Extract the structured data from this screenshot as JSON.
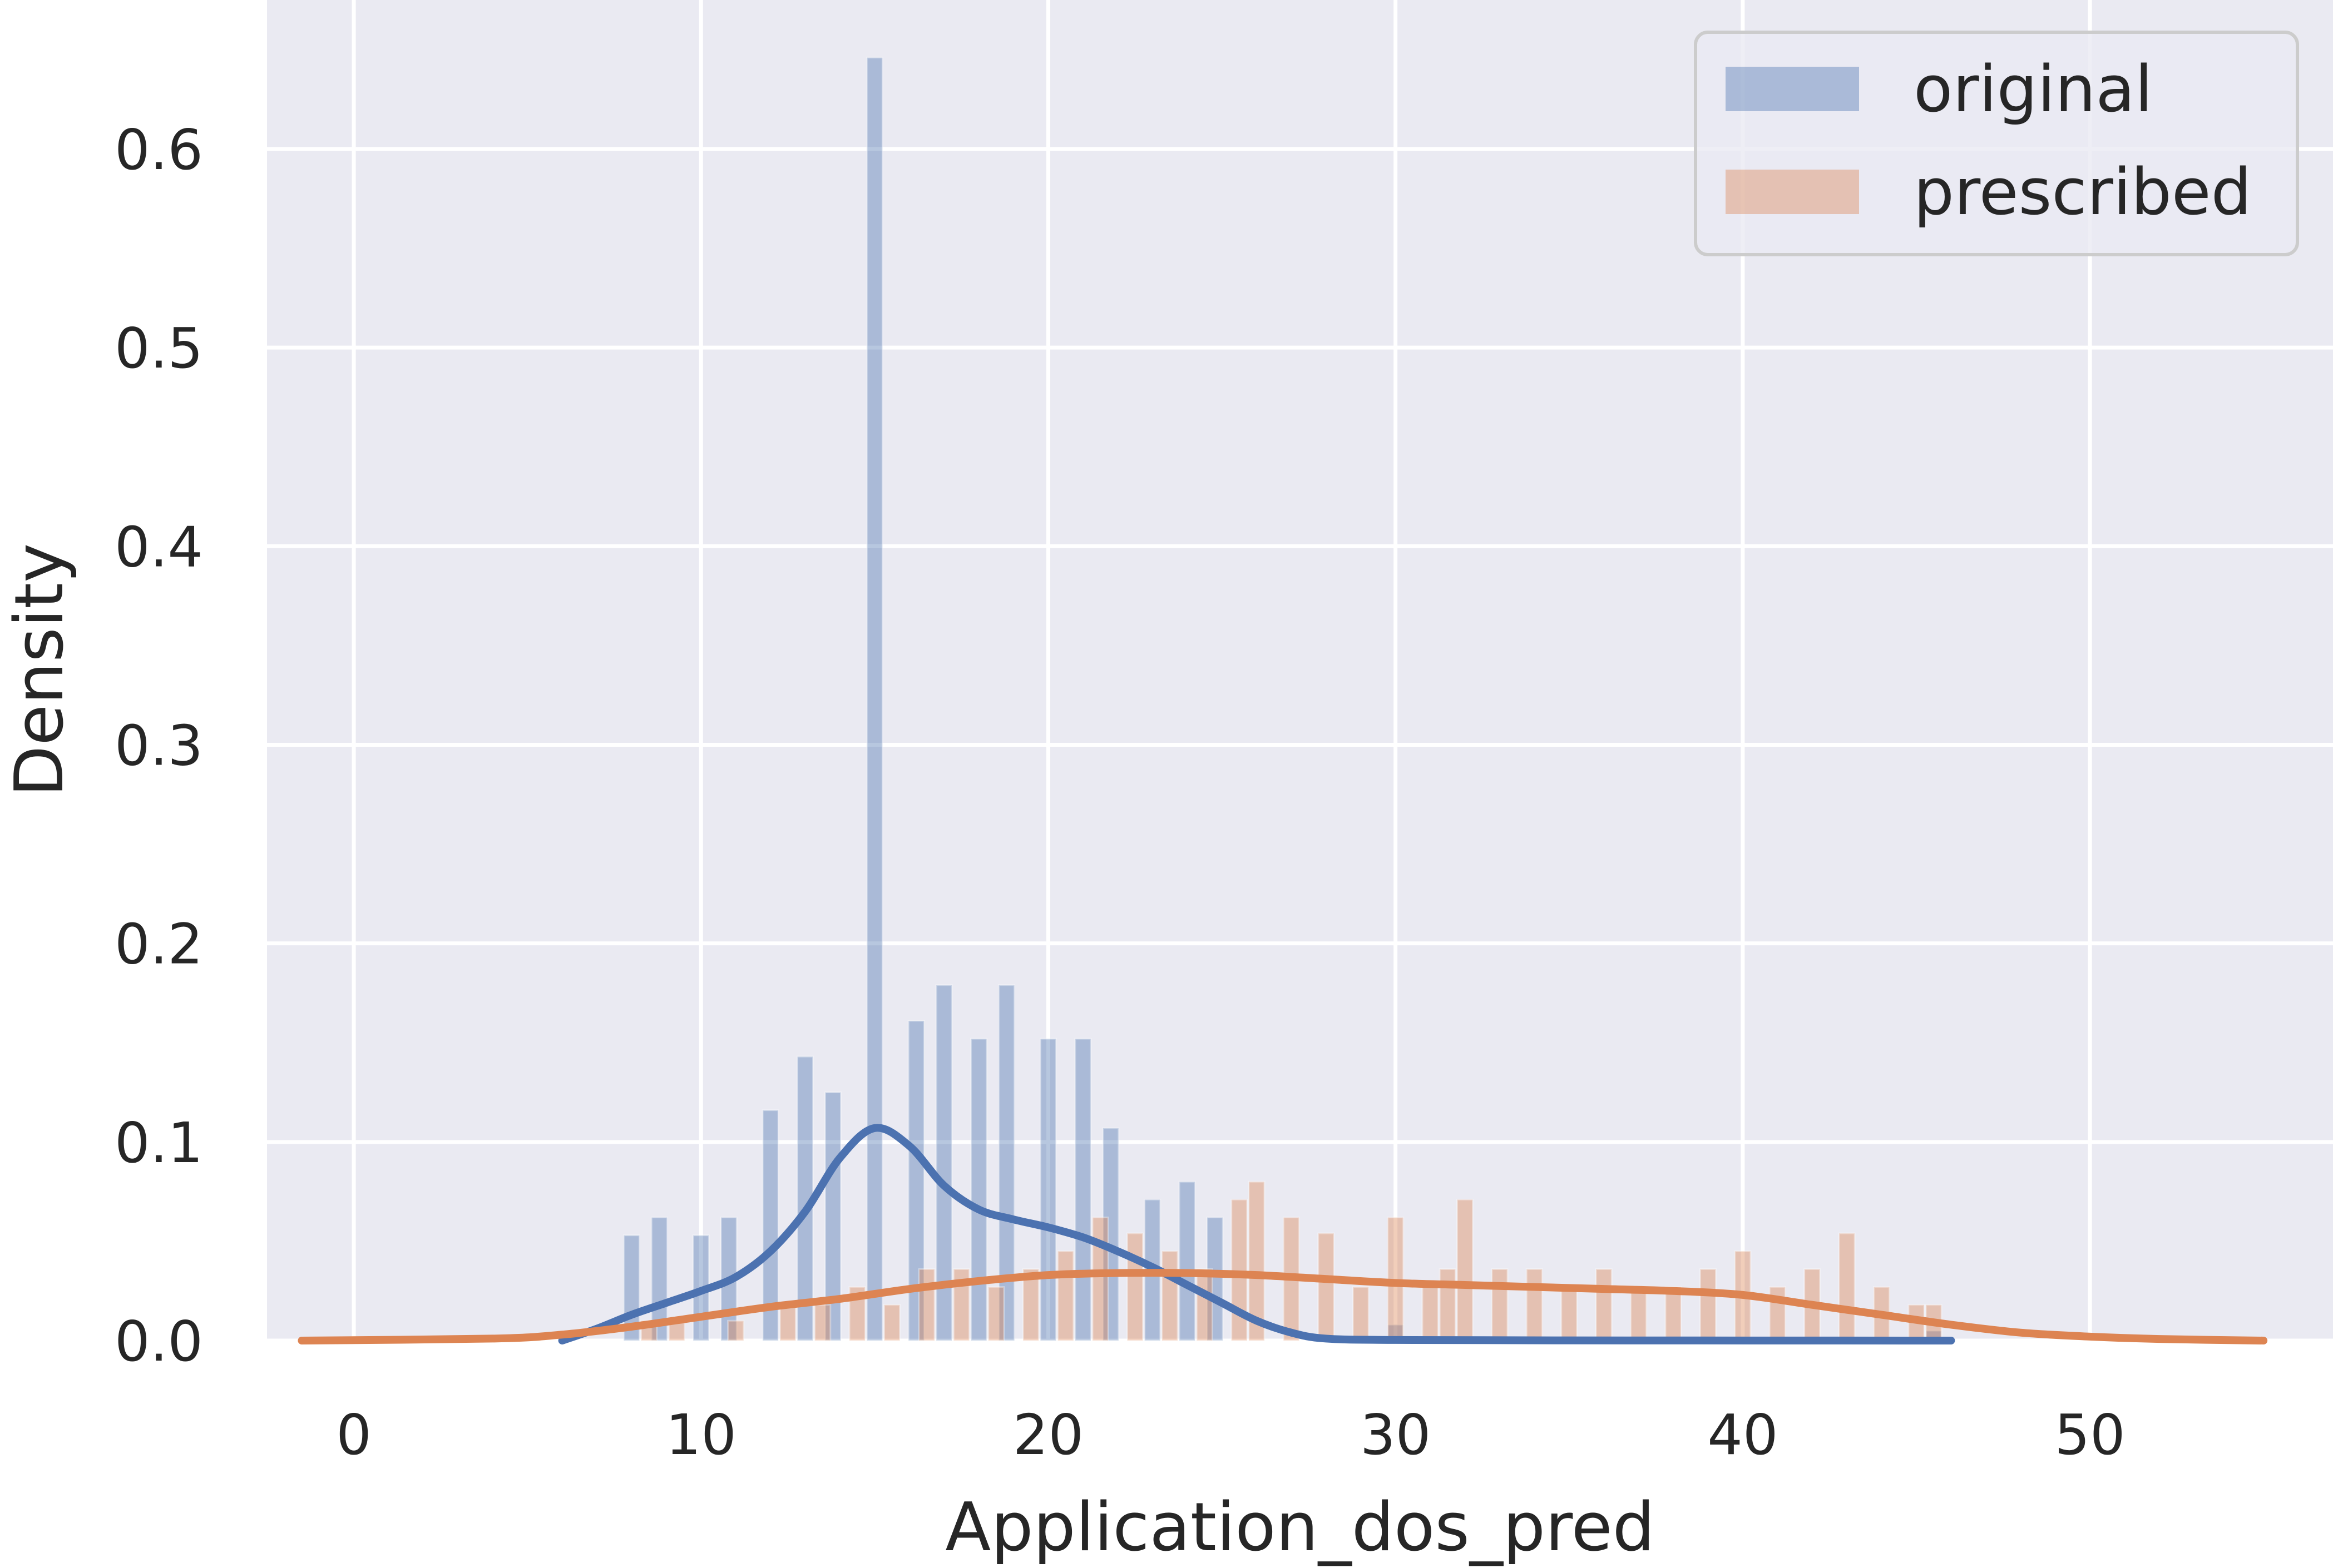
{
  "chart_data": {
    "type": "histogram",
    "xlabel": "Application_dos_pred",
    "ylabel": "Density",
    "xlim": [
      -2.5,
      57
    ],
    "ylim": [
      0,
      0.675
    ],
    "xticks": [
      "0",
      "10",
      "20",
      "30",
      "40",
      "50"
    ],
    "xtick_values": [
      0,
      10,
      20,
      30,
      40,
      50
    ],
    "yticks": [
      "0.0",
      "0.1",
      "0.2",
      "0.3",
      "0.4",
      "0.5",
      "0.6"
    ],
    "ytick_values": [
      0,
      0.1,
      0.2,
      0.3,
      0.4,
      0.5,
      0.6
    ],
    "grid": true,
    "background": "#eaeaf2",
    "legend": {
      "placement": "top-right"
    },
    "bin_width": 0.45,
    "series": [
      {
        "name": "original",
        "color": "#4c72b0",
        "hist": [
          [
            8,
            0.053
          ],
          [
            8.8,
            0.062
          ],
          [
            10,
            0.053
          ],
          [
            10.8,
            0.062
          ],
          [
            12,
            0.116
          ],
          [
            13,
            0.143
          ],
          [
            13.8,
            0.125
          ],
          [
            15,
            0.646
          ],
          [
            16.2,
            0.161
          ],
          [
            17,
            0.179
          ],
          [
            18,
            0.152
          ],
          [
            18.8,
            0.179
          ],
          [
            20,
            0.152
          ],
          [
            21,
            0.152
          ],
          [
            21.8,
            0.107
          ],
          [
            23,
            0.071
          ],
          [
            24,
            0.08
          ],
          [
            24.8,
            0.062
          ],
          [
            30,
            0.008
          ],
          [
            45.5,
            0.005
          ]
        ],
        "kde": [
          [
            6,
            0.0
          ],
          [
            7,
            0.006
          ],
          [
            8,
            0.013
          ],
          [
            9,
            0.019
          ],
          [
            10,
            0.025
          ],
          [
            11,
            0.032
          ],
          [
            12,
            0.045
          ],
          [
            13,
            0.065
          ],
          [
            14,
            0.092
          ],
          [
            15,
            0.107
          ],
          [
            16,
            0.098
          ],
          [
            17,
            0.078
          ],
          [
            18,
            0.066
          ],
          [
            19,
            0.061
          ],
          [
            20,
            0.057
          ],
          [
            21,
            0.052
          ],
          [
            22,
            0.045
          ],
          [
            23,
            0.037
          ],
          [
            24,
            0.028
          ],
          [
            25,
            0.019
          ],
          [
            26,
            0.01
          ],
          [
            27,
            0.004
          ],
          [
            28,
            0.001
          ],
          [
            30,
            0.0003
          ],
          [
            35,
            0.0001
          ],
          [
            46,
            0.0
          ]
        ]
      },
      {
        "name": "prescribed",
        "color": "#dd8452",
        "hist": [
          [
            8.5,
            0.01
          ],
          [
            9.3,
            0.01
          ],
          [
            11,
            0.01
          ],
          [
            12.5,
            0.018
          ],
          [
            13.5,
            0.018
          ],
          [
            14.5,
            0.027
          ],
          [
            15.5,
            0.018
          ],
          [
            16.5,
            0.036
          ],
          [
            17.5,
            0.036
          ],
          [
            18.5,
            0.027
          ],
          [
            19.5,
            0.036
          ],
          [
            20.5,
            0.045
          ],
          [
            21.5,
            0.062
          ],
          [
            22.5,
            0.054
          ],
          [
            23.5,
            0.045
          ],
          [
            24.5,
            0.036
          ],
          [
            25.5,
            0.071
          ],
          [
            26,
            0.08
          ],
          [
            27,
            0.062
          ],
          [
            28,
            0.054
          ],
          [
            29,
            0.027
          ],
          [
            30,
            0.062
          ],
          [
            31,
            0.027
          ],
          [
            31.5,
            0.036
          ],
          [
            32,
            0.071
          ],
          [
            33,
            0.036
          ],
          [
            34,
            0.036
          ],
          [
            35,
            0.027
          ],
          [
            36,
            0.036
          ],
          [
            37,
            0.027
          ],
          [
            38,
            0.027
          ],
          [
            39,
            0.036
          ],
          [
            40,
            0.045
          ],
          [
            41,
            0.027
          ],
          [
            42,
            0.036
          ],
          [
            43,
            0.054
          ],
          [
            44,
            0.027
          ],
          [
            45,
            0.018
          ],
          [
            45.5,
            0.018
          ]
        ],
        "kde": [
          [
            -1.5,
            0.0
          ],
          [
            4,
            0.001
          ],
          [
            6,
            0.003
          ],
          [
            8,
            0.007
          ],
          [
            10,
            0.012
          ],
          [
            12,
            0.017
          ],
          [
            14,
            0.021
          ],
          [
            16,
            0.026
          ],
          [
            18,
            0.03
          ],
          [
            20,
            0.033
          ],
          [
            22,
            0.034
          ],
          [
            24,
            0.034
          ],
          [
            26,
            0.033
          ],
          [
            28,
            0.031
          ],
          [
            30,
            0.029
          ],
          [
            32,
            0.028
          ],
          [
            34,
            0.027
          ],
          [
            36,
            0.026
          ],
          [
            38,
            0.025
          ],
          [
            40,
            0.023
          ],
          [
            42,
            0.018
          ],
          [
            44,
            0.013
          ],
          [
            46,
            0.008
          ],
          [
            48,
            0.004
          ],
          [
            50,
            0.002
          ],
          [
            52,
            0.0008
          ],
          [
            55,
            0.0
          ]
        ]
      }
    ]
  }
}
